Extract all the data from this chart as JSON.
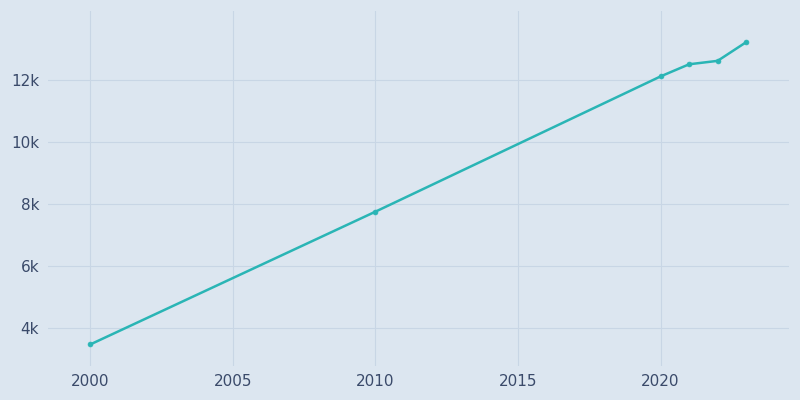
{
  "years": [
    2000,
    2010,
    2020,
    2021,
    2022,
    2023
  ],
  "population": [
    3480,
    7750,
    12100,
    12490,
    12600,
    13200
  ],
  "line_color": "#2ab5b5",
  "marker_color": "#2ab5b5",
  "bg_color": "#dce6f0",
  "grid_color": "#c8d6e5",
  "tick_color": "#3a4a6a",
  "xlim": [
    1998.5,
    2024.5
  ],
  "ylim": [
    2800,
    14200
  ],
  "xticks": [
    2000,
    2005,
    2010,
    2015,
    2020
  ],
  "yticks": [
    4000,
    6000,
    8000,
    10000,
    12000
  ],
  "ytick_labels": [
    "4k",
    "6k",
    "8k",
    "10k",
    "12k"
  ]
}
